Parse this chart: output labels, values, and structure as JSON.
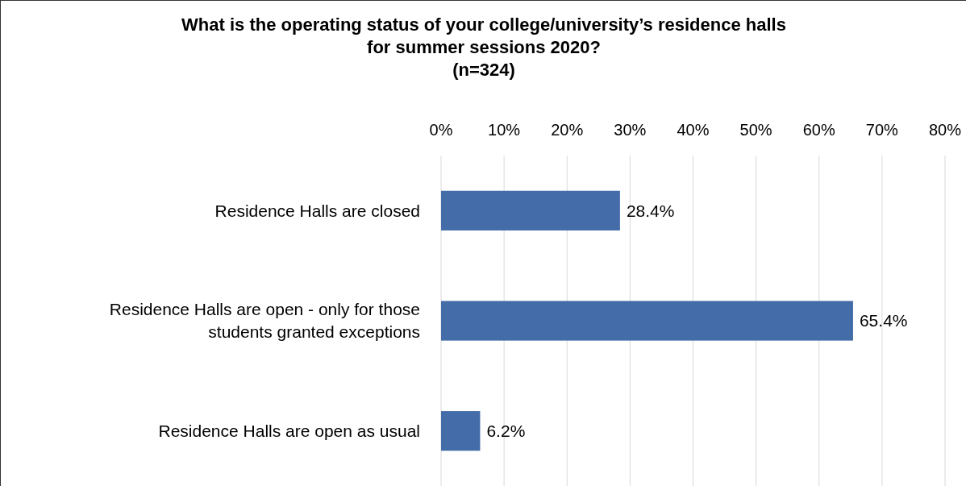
{
  "chart_data": {
    "type": "bar",
    "orientation": "horizontal",
    "title": "What is the operating status of your college/university’s residence halls for summer sessions 2020?",
    "subtitle": "(n=324)",
    "categories": [
      "Residence Halls are closed",
      "Residence Halls are open - only for those students granted exceptions",
      "Residence Halls are open as usual"
    ],
    "values": [
      28.4,
      65.4,
      6.2
    ],
    "value_labels": [
      "28.4%",
      "65.4%",
      "6.2%"
    ],
    "color": "#436ca8",
    "xlim": [
      0,
      80
    ],
    "xticks": [
      {
        "value": 0,
        "label": "0%"
      },
      {
        "value": 10,
        "label": "10%"
      },
      {
        "value": 20,
        "label": "20%"
      },
      {
        "value": 30,
        "label": "30%"
      },
      {
        "value": 40,
        "label": "40%"
      },
      {
        "value": 50,
        "label": "50%"
      },
      {
        "value": 60,
        "label": "60%"
      },
      {
        "value": 70,
        "label": "70%"
      },
      {
        "value": 80,
        "label": "80%"
      }
    ],
    "grid": true
  }
}
